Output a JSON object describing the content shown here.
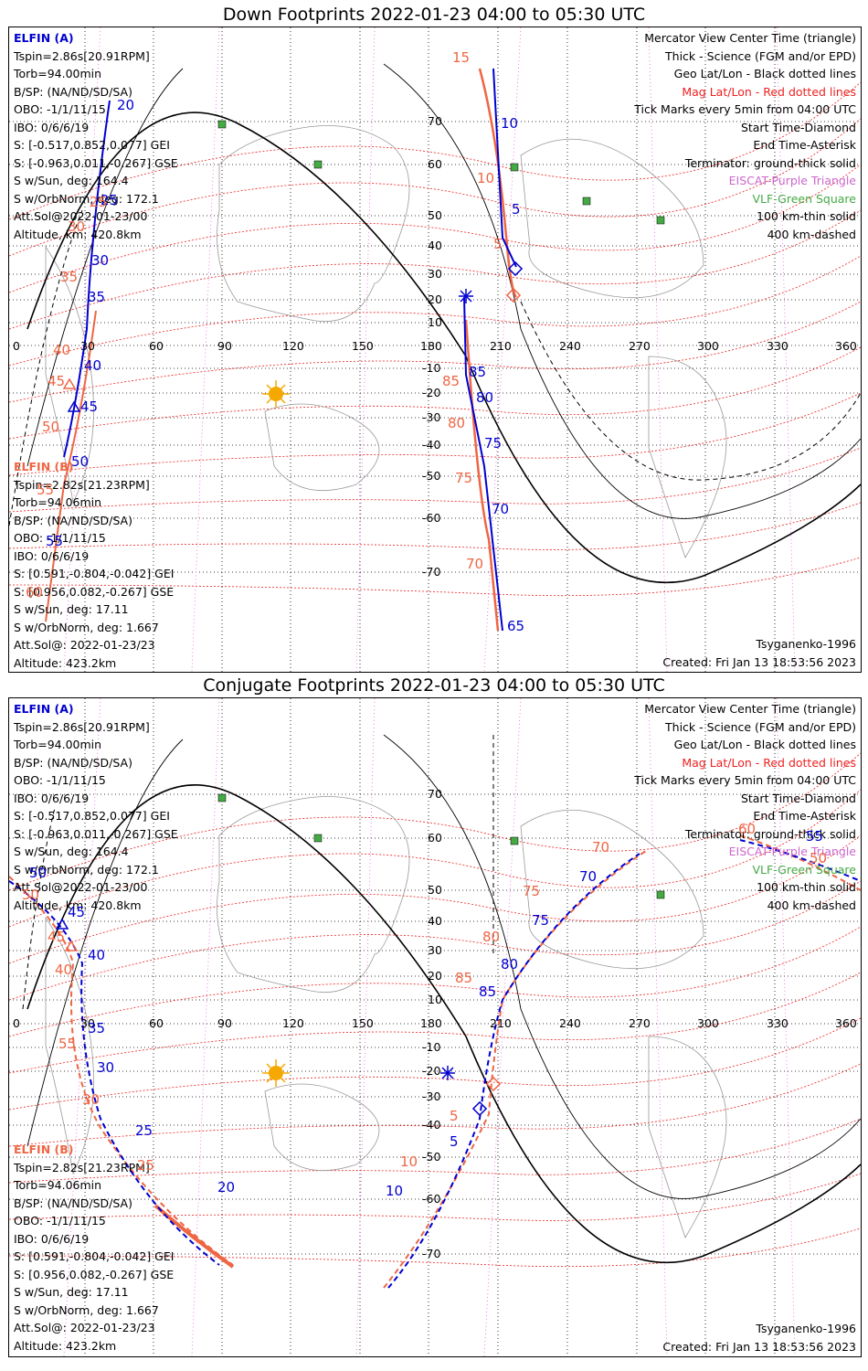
{
  "panels": [
    {
      "title": "Down Footprints 2022-01-23 04:00 to 05:30 UTC",
      "elfin_a": [
        "ELFIN (A)",
        "Tspin=2.86s[20.91RPM]",
        "Torb=94.00min",
        "B/SP: (NA/ND/SD/SA)",
        "OBO: -1/1/11/15",
        "IBO: 0/6/6/19",
        "S: [-0.517,0.852,0.077] GEI",
        "S: [-0.963,0.011,-0.267] GSE",
        "S w/Sun, deg: 164.4",
        "S w/OrbNorm, deg: 172.1",
        "Att.Sol@2022-01-23/00",
        "Altitude, km: 420.8km"
      ],
      "elfin_b": [
        "ELFIN (B)",
        "Tspin=2.82s[21.23RPM]",
        "Torb=94.06min",
        "B/SP: (NA/ND/SD/SA)",
        "OBO: -1/1/11/15",
        "IBO: 0/6/6/19",
        "S: [0.591,-0.804,-0.042] GEI",
        "S: [0.956,0.082,-0.267] GSE",
        "S w/Sun, deg: 17.11",
        "S w/OrbNorm, deg: 1.667",
        "Att.Sol@: 2022-01-23/23",
        "Altitude: 423.2km"
      ],
      "legend": [
        {
          "text": "Mercator View Center Time (triangle)",
          "color": "#000000"
        },
        {
          "text": "Thick - Science (FGM and/or EPD)",
          "color": "#000000"
        },
        {
          "text": "Geo Lat/Lon - Black dotted lines",
          "color": "#000000"
        },
        {
          "text": "Mag Lat/Lon - Red dotted lines",
          "color": "#ee2020"
        },
        {
          "text": "Tick Marks every 5min from 04:00 UTC",
          "color": "#000000"
        },
        {
          "text": "Start Time-Diamond",
          "color": "#000000"
        },
        {
          "text": "End Time-Asterisk",
          "color": "#000000"
        },
        {
          "text": "Terminator: ground-thick solid",
          "color": "#000000"
        },
        {
          "text": "EISCAT-Purple Triangle",
          "color": "#cc66cc"
        },
        {
          "text": "VLF-Green Square",
          "color": "#44aa44"
        },
        {
          "text": "100 km-thin solid",
          "color": "#000000"
        },
        {
          "text": "400 km-dashed",
          "color": "#000000"
        }
      ],
      "model": "Tsyganenko-1996",
      "created": "Created: Fri Jan 13 18:53:56 2023",
      "lon_labels": [
        "0",
        "30",
        "60",
        "90",
        "120",
        "150",
        "180",
        "210",
        "240",
        "270",
        "300",
        "330",
        "360"
      ],
      "lat_labels": [
        "70",
        "60",
        "50",
        "40",
        "30",
        "20",
        "10",
        "-10",
        "-20",
        "-30",
        "-40",
        "-50",
        "-60",
        "-70"
      ],
      "tick_labels_a": [
        "20",
        "25",
        "30",
        "35",
        "40",
        "45",
        "50",
        "55",
        "10",
        "5",
        "85",
        "80",
        "75",
        "70",
        "65"
      ],
      "tick_labels_b": [
        "15",
        "25",
        "30",
        "35",
        "40",
        "45",
        "50",
        "55",
        "60",
        "10",
        "5",
        "85",
        "80",
        "75",
        "70"
      ]
    },
    {
      "title": "Conjugate Footprints 2022-01-23 04:00 to 05:30 UTC",
      "elfin_a": [
        "ELFIN (A)",
        "Tspin=2.86s[20.91RPM]",
        "Torb=94.00min",
        "B/SP: (NA/ND/SD/SA)",
        "OBO: -1/1/11/15",
        "IBO: 0/6/6/19",
        "S: [-0.517,0.852,0.077] GEI",
        "S: [-0.963,0.011,-0.267] GSE",
        "S w/Sun, deg: 164.4",
        "S w/OrbNorm, deg: 172.1",
        "Att.Sol@2022-01-23/00",
        "Altitude, km: 420.8km"
      ],
      "elfin_b": [
        "ELFIN (B)",
        "Tspin=2.82s[21.23RPM]",
        "Torb=94.06min",
        "B/SP: (NA/ND/SD/SA)",
        "OBO: -1/1/11/15",
        "IBO: 0/6/6/19",
        "S: [0.591,-0.804,-0.042] GEI",
        "S: [0.956,0.082,-0.267] GSE",
        "S w/Sun, deg: 17.11",
        "S w/OrbNorm, deg: 1.667",
        "Att.Sol@: 2022-01-23/23",
        "Altitude: 423.2km"
      ],
      "legend": [
        {
          "text": "Mercator View Center Time (triangle)",
          "color": "#000000"
        },
        {
          "text": "Thick - Science (FGM and/or EPD)",
          "color": "#000000"
        },
        {
          "text": "Geo Lat/Lon - Black dotted lines",
          "color": "#000000"
        },
        {
          "text": "Mag Lat/Lon - Red dotted lines",
          "color": "#ee2020"
        },
        {
          "text": "Tick Marks every 5min from 04:00 UTC",
          "color": "#000000"
        },
        {
          "text": "Start Time-Diamond",
          "color": "#000000"
        },
        {
          "text": "End Time-Asterisk",
          "color": "#000000"
        },
        {
          "text": "Terminator: ground-thick solid",
          "color": "#000000"
        },
        {
          "text": "EISCAT-Purple Triangle",
          "color": "#cc66cc"
        },
        {
          "text": "VLF-Green Square",
          "color": "#44aa44"
        },
        {
          "text": "100 km-thin solid",
          "color": "#000000"
        },
        {
          "text": "400 km-dashed",
          "color": "#000000"
        }
      ],
      "model": "Tsyganenko-1996",
      "created": "Created: Fri Jan 13 18:53:56 2023",
      "lon_labels": [
        "0",
        "30",
        "60",
        "90",
        "120",
        "150",
        "180",
        "210",
        "240",
        "270",
        "300",
        "330",
        "360"
      ],
      "lat_labels": [
        "70",
        "60",
        "50",
        "40",
        "30",
        "20",
        "10",
        "-10",
        "-20",
        "-30",
        "-40",
        "-50",
        "-60",
        "-70"
      ],
      "tick_labels_a": [
        "50",
        "45",
        "40",
        "35",
        "30",
        "25",
        "20",
        "85",
        "80",
        "75",
        "70",
        "5",
        "10",
        "55"
      ],
      "tick_labels_b": [
        "50",
        "45",
        "40",
        "55",
        "30",
        "25",
        "85",
        "80",
        "75",
        "70",
        "5",
        "10",
        "60",
        "50"
      ]
    }
  ],
  "colors": {
    "elfin_a": "#0000d0",
    "elfin_b": "#ee6644",
    "terminator": "#000000",
    "mag_grid": "#ee2020",
    "vlf": "#44aa44",
    "sun": "#f5a800"
  }
}
